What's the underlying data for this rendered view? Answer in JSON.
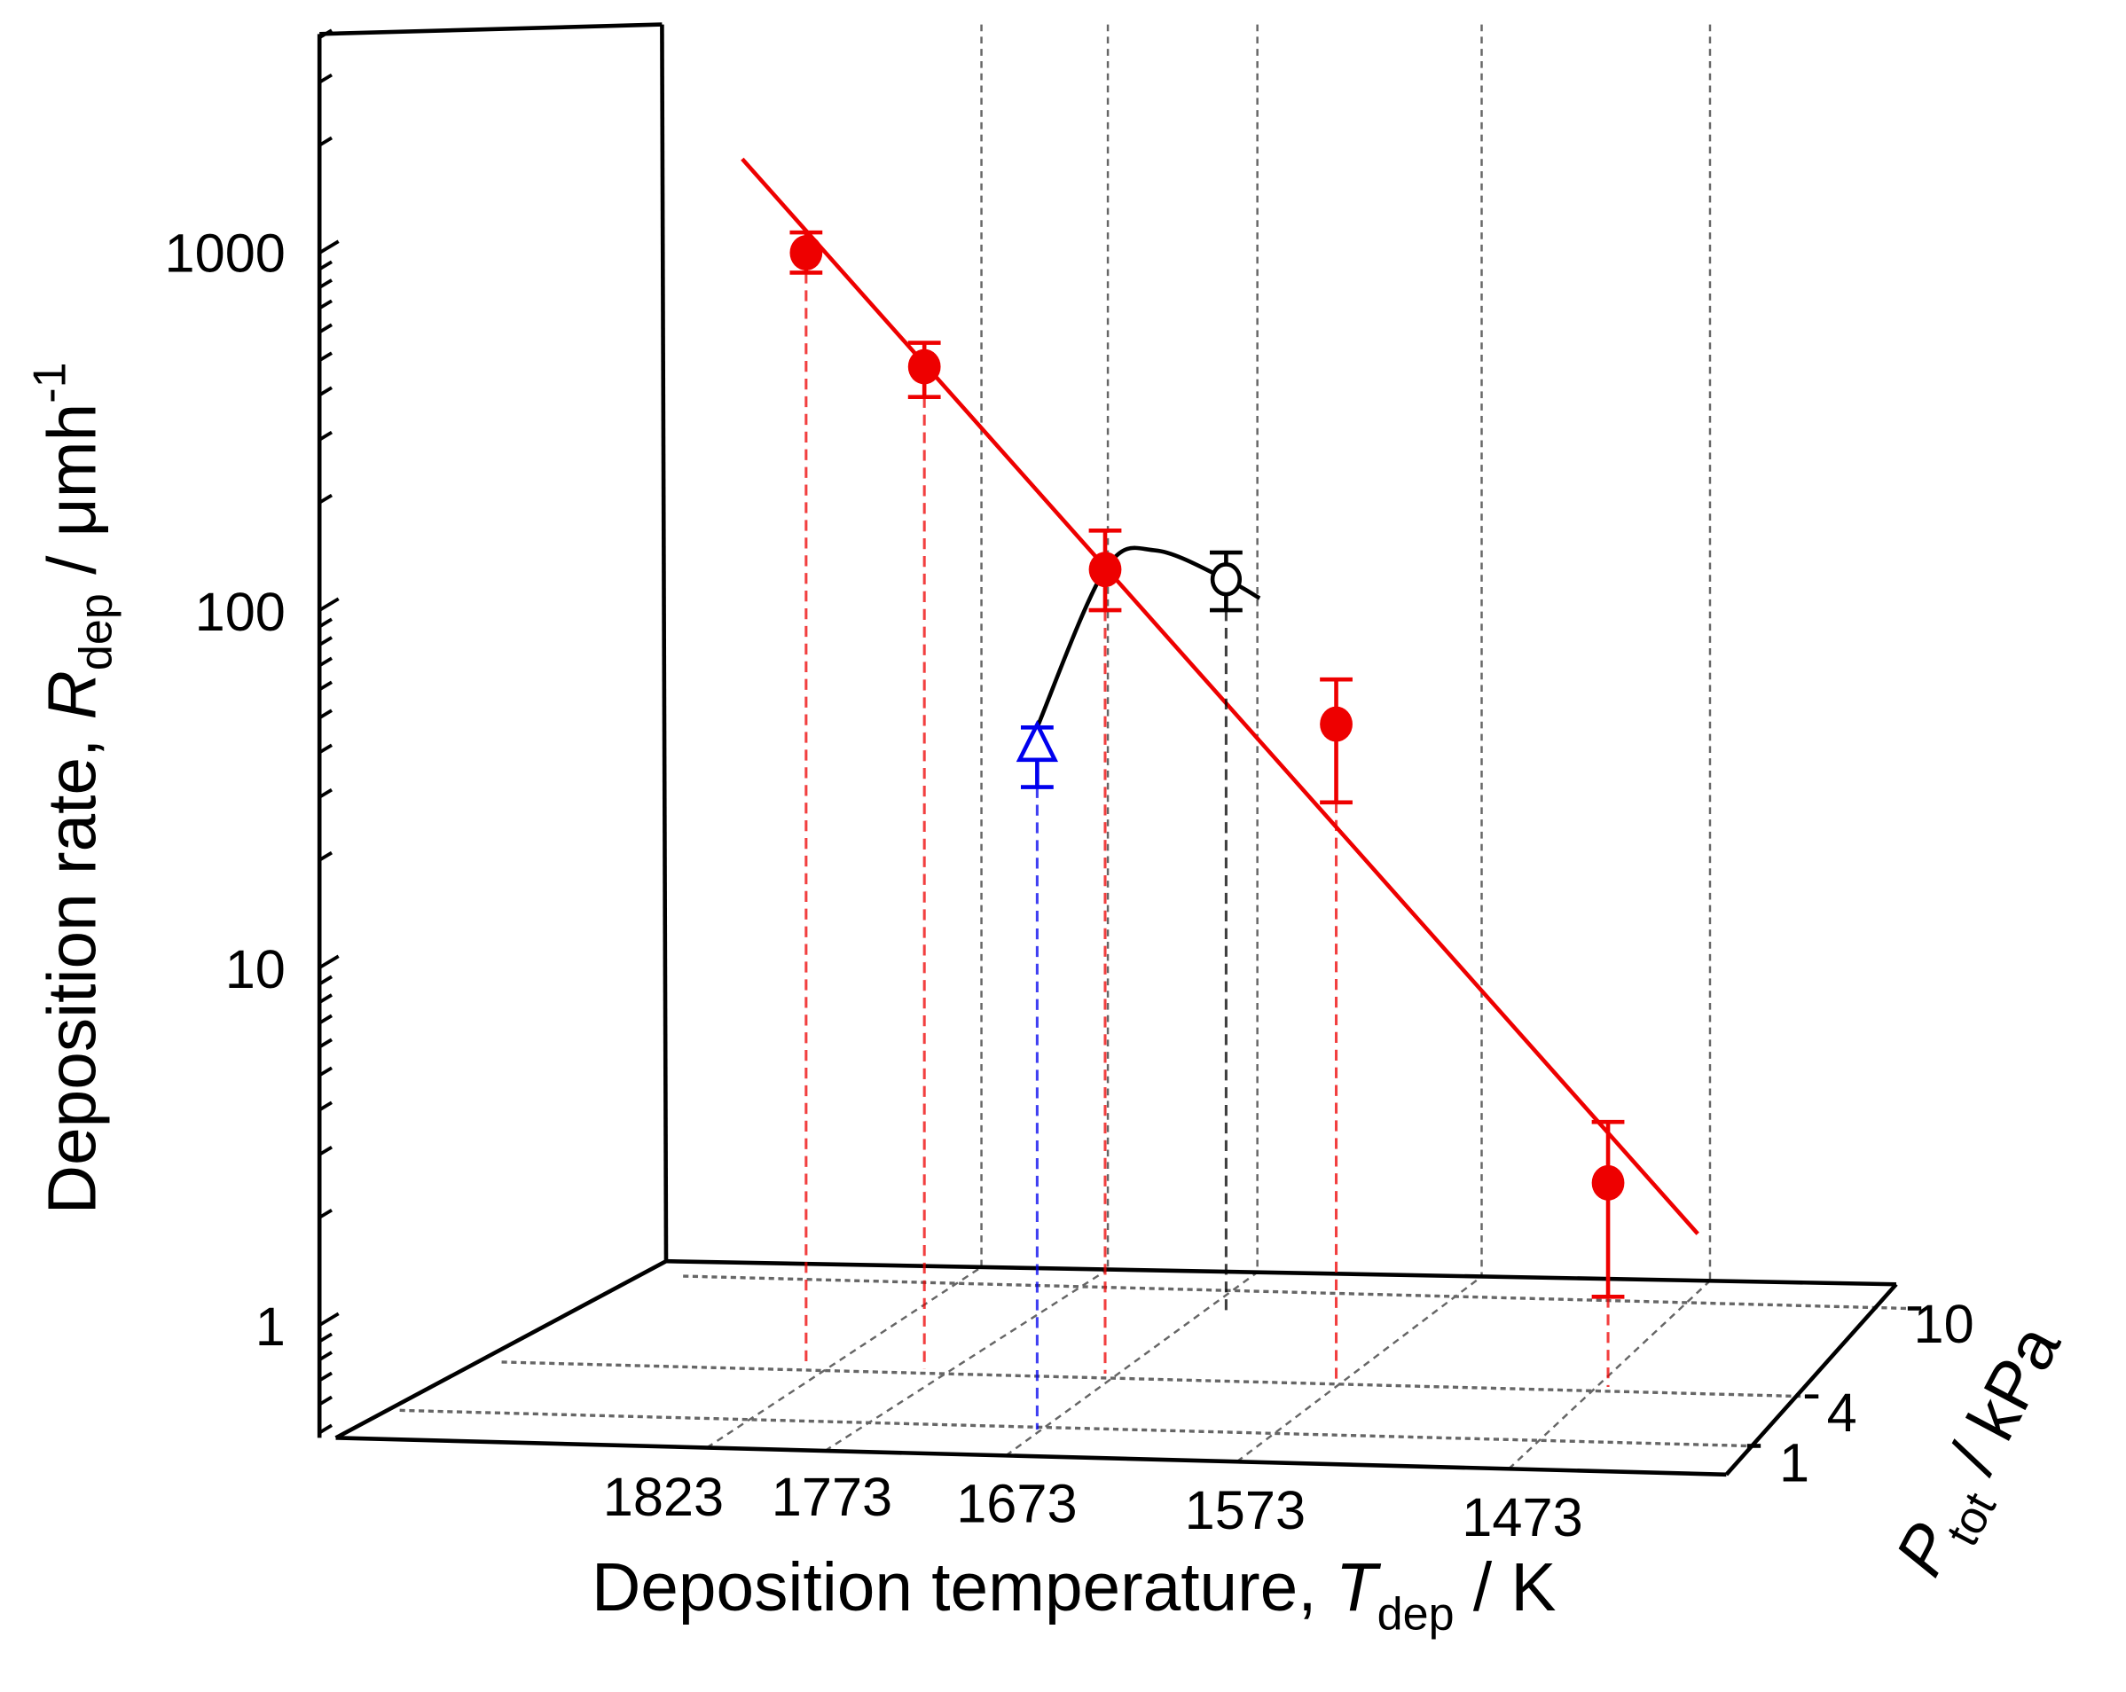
{
  "chart_data": {
    "type": "scatter",
    "projection": "pseudo-3d",
    "yscale": "log",
    "ylim": [
      0.5,
      4000
    ],
    "yticks": [
      1,
      10,
      100,
      1000
    ],
    "ytick_labels": [
      "1",
      "10",
      "100",
      "1000"
    ],
    "xticks": [
      1823,
      1773,
      1673,
      1573,
      1473
    ],
    "xtick_labels": [
      "1823",
      "1773",
      "1673",
      "1573",
      "1473"
    ],
    "zticks": [
      1,
      4,
      10
    ],
    "ztick_labels": [
      "1",
      "4",
      "10"
    ],
    "ylabel": {
      "main": "Deposition rate, ",
      "var": "R",
      "sub": "dep",
      "unit": " / μmh",
      "sup": "-1"
    },
    "xlabel": {
      "main": "Deposition temperature, ",
      "var": "T",
      "sub": "dep",
      "unit": " / K"
    },
    "zlabel": {
      "var": "P",
      "sub": "tot",
      "unit": " / kPa"
    },
    "grid": true,
    "series": [
      {
        "marker": "filled-circle",
        "color": "#ee0000",
        "P": 4,
        "points": [
          {
            "T": 1823,
            "R": 1000,
            "err": [
              880,
              1140
            ]
          },
          {
            "T": 1773,
            "R": 480,
            "err": [
              395,
              560
            ]
          },
          {
            "T": 1673,
            "R": 130,
            "err": [
              100,
              167
            ]
          },
          {
            "T": 1573,
            "R": 48,
            "err": [
              29,
              64
            ]
          },
          {
            "T": 1473,
            "R": 2.5,
            "err": [
              1.2,
              3.7
            ]
          }
        ]
      },
      {
        "marker": "open-triangle",
        "color": "#0000ee",
        "P": 1,
        "points": [
          {
            "T": 1673,
            "R": 42,
            "err": [
              32,
              47
            ]
          }
        ]
      },
      {
        "marker": "open-circle",
        "color": "#000000",
        "P": 10,
        "points": [
          {
            "T": 1673,
            "R": 122,
            "err": [
              100,
              145
            ]
          }
        ]
      }
    ],
    "fit_line": {
      "color": "#ee0000",
      "P": 4,
      "points": [
        [
          1850,
          1830
        ],
        [
          1440,
          1.8
        ]
      ]
    },
    "trend_curve": {
      "color": "#000000",
      "T": 1673,
      "points": [
        [
          1,
          47
        ],
        [
          4,
          130
        ],
        [
          6.5,
          147
        ],
        [
          10,
          122
        ],
        [
          11.7,
          108
        ]
      ]
    }
  }
}
